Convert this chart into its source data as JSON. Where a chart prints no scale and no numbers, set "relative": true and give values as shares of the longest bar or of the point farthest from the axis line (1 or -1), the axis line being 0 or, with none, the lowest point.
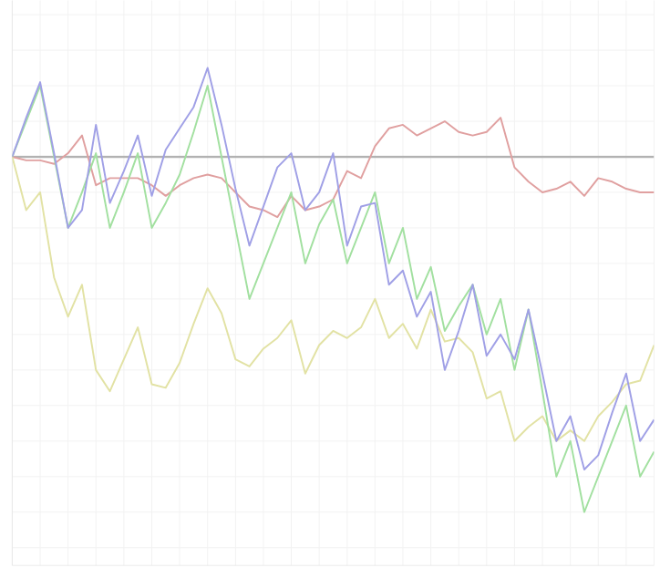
{
  "chart_data": {
    "type": "line",
    "relative": true,
    "grid": true,
    "categories": [
      null,
      null,
      null,
      null,
      null,
      null,
      null,
      null,
      null,
      null,
      null,
      null,
      null,
      null,
      null,
      null,
      null,
      null,
      null,
      null,
      null,
      null,
      null,
      null,
      null,
      null,
      null,
      null,
      null,
      null,
      null,
      null,
      null,
      null,
      null,
      null,
      null,
      null,
      null,
      null,
      null,
      null,
      null,
      null,
      null,
      null,
      null
    ],
    "series": [
      {
        "color": "#e0a0a0",
        "values": [
          0,
          -0.01,
          -0.01,
          -0.02,
          0.01,
          0.06,
          -0.08,
          -0.06,
          -0.06,
          -0.06,
          -0.08,
          -0.11,
          -0.08,
          -0.06,
          -0.05,
          -0.06,
          -0.1,
          -0.14,
          -0.15,
          -0.17,
          -0.11,
          -0.15,
          -0.14,
          -0.12,
          -0.04,
          -0.06,
          0.03,
          0.08,
          0.09,
          0.06,
          0.08,
          0.1,
          0.07,
          0.06,
          0.07,
          0.11,
          -0.03,
          -0.07,
          -0.1,
          -0.09,
          -0.07,
          -0.11,
          -0.06,
          -0.07,
          -0.09,
          -0.1,
          -0.1
        ]
      },
      {
        "color": "#e2e2a4",
        "values": [
          0,
          -0.15,
          -0.1,
          -0.34,
          -0.45,
          -0.36,
          -0.6,
          -0.66,
          -0.57,
          -0.48,
          -0.64,
          -0.65,
          -0.58,
          -0.47,
          -0.37,
          -0.44,
          -0.57,
          -0.59,
          -0.54,
          -0.51,
          -0.46,
          -0.61,
          -0.53,
          -0.49,
          -0.51,
          -0.48,
          -0.4,
          -0.51,
          -0.47,
          -0.54,
          -0.43,
          -0.52,
          -0.51,
          -0.55,
          -0.68,
          -0.66,
          -0.8,
          -0.76,
          -0.73,
          -0.8,
          -0.77,
          -0.8,
          -0.73,
          -0.69,
          -0.64,
          -0.63,
          -0.53
        ]
      },
      {
        "color": "#a2e0a0",
        "values": [
          0,
          0.1,
          0.2,
          0,
          -0.2,
          -0.1,
          0.01,
          -0.2,
          -0.1,
          0.01,
          -0.2,
          -0.13,
          -0.05,
          0.07,
          0.2,
          0,
          -0.2,
          -0.4,
          -0.3,
          -0.2,
          -0.1,
          -0.3,
          -0.19,
          -0.12,
          -0.3,
          -0.2,
          -0.1,
          -0.3,
          -0.2,
          -0.4,
          -0.31,
          -0.49,
          -0.42,
          -0.36,
          -0.5,
          -0.4,
          -0.6,
          -0.43,
          -0.66,
          -0.9,
          -0.8,
          -1,
          -0.9,
          -0.8,
          -0.7,
          -0.9,
          -0.83
        ]
      },
      {
        "color": "#a0a0e6",
        "values": [
          0,
          0.11,
          0.21,
          0.01,
          -0.2,
          -0.15,
          0.09,
          -0.13,
          -0.04,
          0.06,
          -0.11,
          0.02,
          0.08,
          0.14,
          0.25,
          0.09,
          -0.09,
          -0.25,
          -0.14,
          -0.03,
          0.01,
          -0.15,
          -0.1,
          0.01,
          -0.25,
          -0.14,
          -0.13,
          -0.36,
          -0.32,
          -0.45,
          -0.38,
          -0.6,
          -0.49,
          -0.36,
          -0.56,
          -0.5,
          -0.57,
          -0.43,
          -0.61,
          -0.8,
          -0.73,
          -0.88,
          -0.84,
          -0.72,
          -0.61,
          -0.8,
          -0.74
        ]
      }
    ]
  }
}
